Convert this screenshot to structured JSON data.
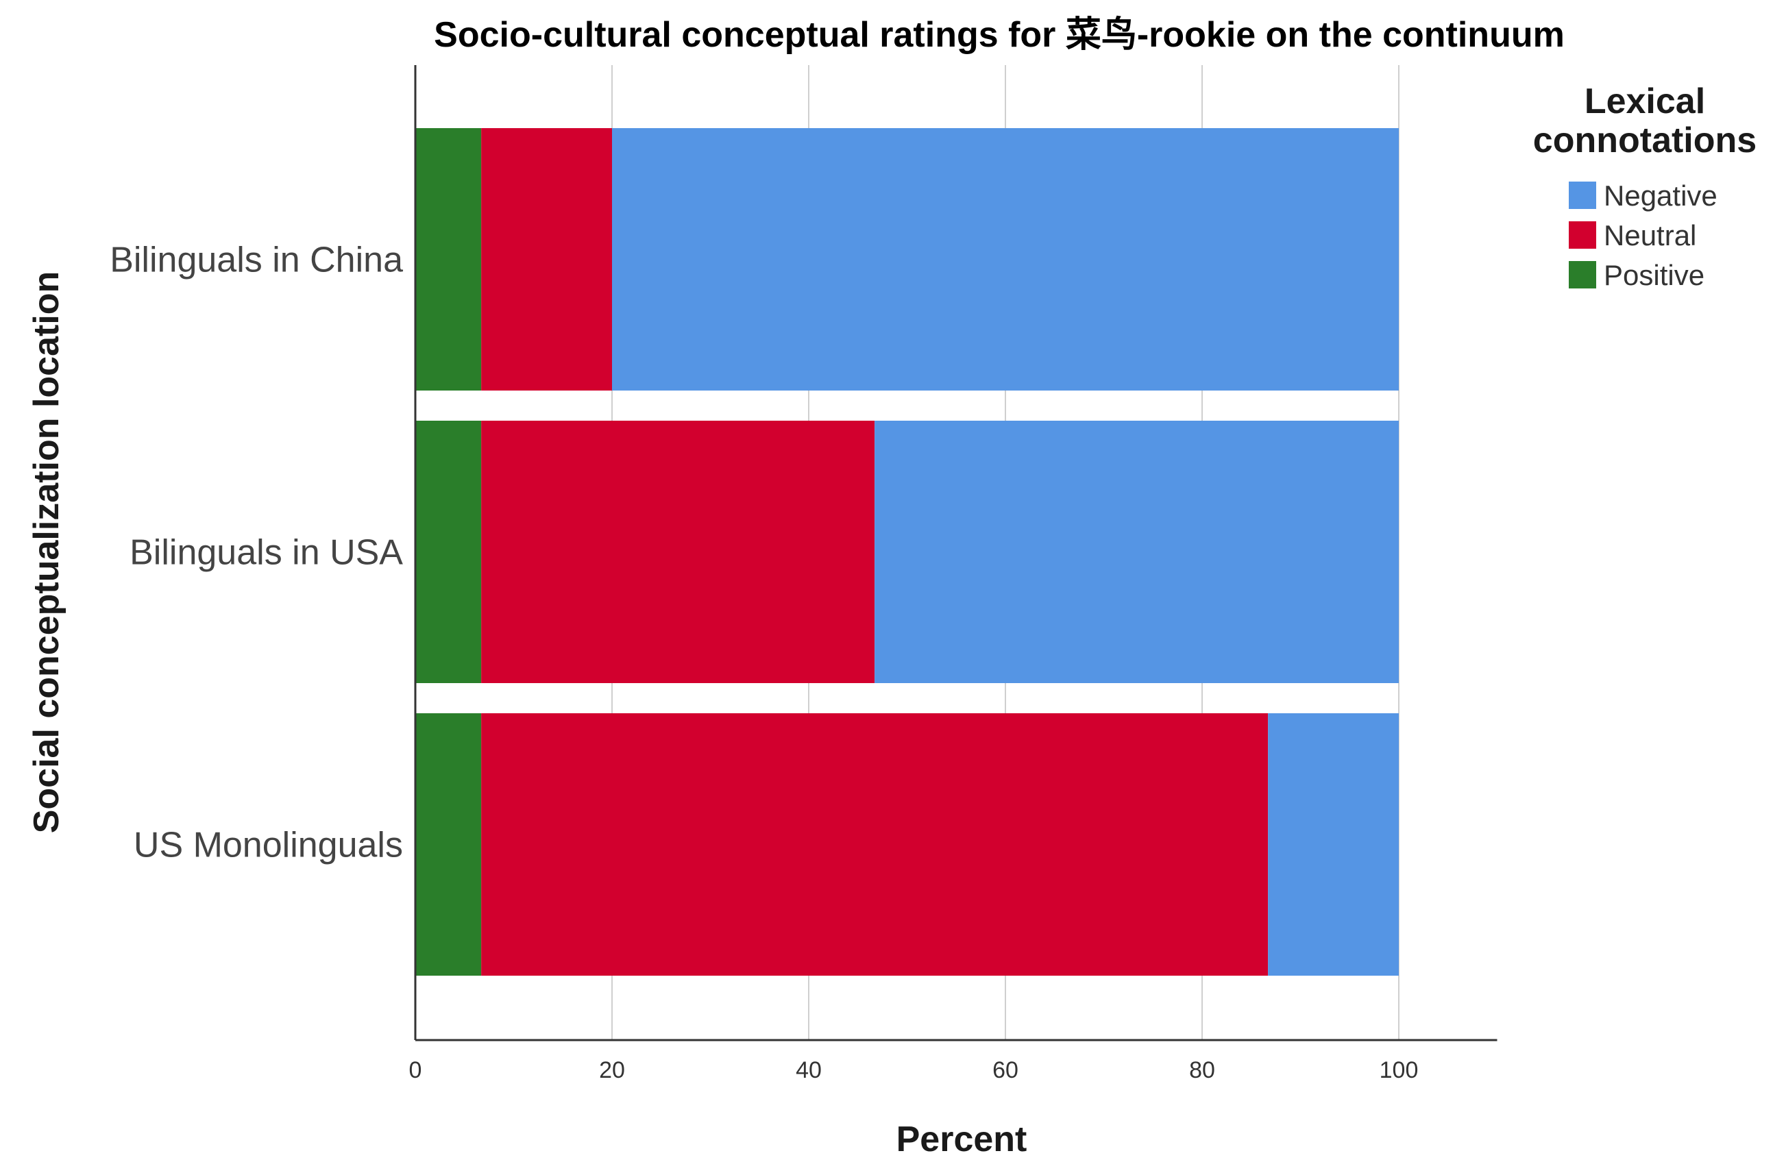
{
  "chart_data": {
    "type": "bar",
    "orientation": "horizontal",
    "stacked": true,
    "title": "Socio-cultural conceptual ratings for 菜鸟-rookie on the continuum",
    "xlabel": "Percent",
    "ylabel": "Social conceptualization location",
    "xlim": [
      0,
      110
    ],
    "xticks": [
      0,
      20,
      40,
      60,
      80,
      100
    ],
    "grid": "vertical",
    "categories": [
      "Bilinguals in China",
      "Bilinguals in USA",
      "US Monolinguals"
    ],
    "series": [
      {
        "name": "Positive",
        "color": "#2a7e2a",
        "values": [
          6.7,
          6.7,
          6.7
        ]
      },
      {
        "name": "Neutral",
        "color": "#d2002e",
        "values": [
          13.3,
          40.0,
          80.0
        ]
      },
      {
        "name": "Negative",
        "color": "#5595e4",
        "values": [
          80.0,
          53.3,
          13.3
        ]
      }
    ],
    "legend": {
      "title_lines": [
        "Lexical",
        "connotations"
      ],
      "placement": "right",
      "order": [
        "Negative",
        "Neutral",
        "Positive"
      ]
    }
  }
}
